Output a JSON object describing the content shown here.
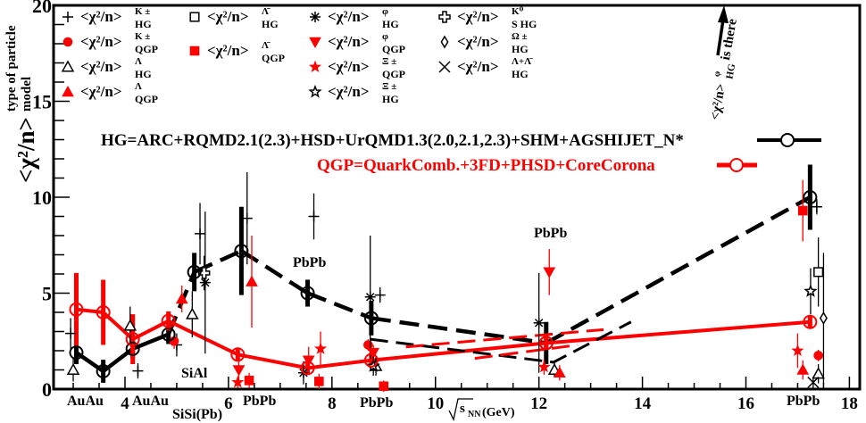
{
  "chart_data": {
    "type": "line",
    "title": "",
    "xlabel": {
      "base": "√",
      "main": "s",
      "sub": "NN",
      "unit": " (GeV)"
    },
    "ylabel": {
      "base": "<χ²/n>",
      "sup": "type of particle",
      "sub": "model"
    },
    "xlim": [
      2.62,
      18.2
    ],
    "ylim": [
      0,
      20
    ],
    "x_ticks": [
      4,
      6,
      8,
      10,
      12,
      14,
      16,
      18
    ],
    "y_ticks": [
      0,
      5,
      10,
      15,
      20
    ],
    "grid": false,
    "colors": {
      "hg": "#000000",
      "qgp": "#ff0000"
    },
    "series": [
      {
        "name": "HG=ARC+RQMD2.1(2.3)+HSD+UrQMD1.3(2.0,2.1,2.3)+SHM+AGSHIJET_N*",
        "color": "#000000",
        "x": [
          3.06,
          3.58,
          4.15,
          4.84,
          5.34,
          6.25,
          7.53,
          8.76,
          12.14,
          17.24
        ],
        "y": [
          1.9,
          0.93,
          2.1,
          2.85,
          6.1,
          7.2,
          5.0,
          3.7,
          2.4,
          10.0
        ],
        "yerr": [
          0.6,
          0.6,
          0.5,
          0.5,
          1.0,
          2.3,
          0.7,
          0.9,
          1.1,
          1.7
        ]
      },
      {
        "name": "QGP=QuarkComb.+3FD+PHSD+CoreCorona",
        "color": "#ff0000",
        "x": [
          3.06,
          3.58,
          4.15,
          4.84,
          6.18,
          7.53,
          8.76,
          12.14,
          17.24
        ],
        "y": [
          4.15,
          4.0,
          2.6,
          3.55,
          1.8,
          1.1,
          1.5,
          2.4,
          3.5
        ],
        "yerr": [
          1.9,
          1.7,
          1.3,
          0.5,
          0.3,
          0.3,
          0.4,
          0.3,
          0.3
        ]
      }
    ],
    "extra_dashed_lines": [
      {
        "color": "#000000",
        "x": [
          8.74,
          12.28,
          13.78
        ],
        "y": [
          2.6,
          1.4,
          3.5
        ]
      },
      {
        "color": "#ff0000",
        "x": [
          9.43,
          13.25
        ],
        "y": [
          2.2,
          3.1
        ]
      },
      {
        "color": "#ff0000",
        "x": [
          10.76,
          12.75
        ],
        "y": [
          1.6,
          2.3
        ]
      }
    ],
    "markers": [
      {
        "key": "K_HG",
        "symbol": "plus",
        "color": "#000000",
        "points": [
          [
            2.95,
            2.9,
            0.8
          ],
          [
            4.25,
            0.95,
            0.4
          ],
          [
            5.0,
            2.3,
            0.6
          ],
          [
            5.45,
            8.1,
            1.6
          ],
          [
            6.36,
            8.9,
            2.4
          ],
          [
            7.65,
            9.0,
            1.2
          ],
          [
            8.93,
            4.9,
            0.4
          ],
          [
            17.37,
            9.5,
            0.4
          ]
        ]
      },
      {
        "key": "K_QGP",
        "symbol": "circle-filled",
        "color": "#ff0000",
        "points": [
          [
            4.95,
            2.5,
            0.4
          ],
          [
            8.7,
            2.3,
            0.3
          ],
          [
            17.4,
            1.75,
            0.3
          ]
        ]
      },
      {
        "key": "L_HG",
        "symbol": "triangle-open",
        "color": "#000000",
        "points": [
          [
            3.0,
            1.0,
            0.6
          ],
          [
            4.1,
            3.3,
            1.0
          ],
          [
            5.3,
            3.9,
            1.2
          ],
          [
            8.85,
            1.2,
            0.5
          ],
          [
            12.3,
            1.0,
            0.4
          ],
          [
            17.4,
            0.8,
            0.5
          ]
        ]
      },
      {
        "key": "L_QGP",
        "symbol": "triangle-filled",
        "color": "#ff0000",
        "points": [
          [
            5.1,
            4.7,
            0.7
          ],
          [
            6.45,
            5.6,
            2.4
          ],
          [
            12.4,
            0.85,
            0.4
          ],
          [
            17.1,
            1.0,
            0.5
          ]
        ]
      },
      {
        "key": "AL_HG",
        "symbol": "square-open",
        "color": "#000000",
        "points": [
          [
            17.4,
            6.1,
            1.8
          ]
        ]
      },
      {
        "key": "AL_QGP",
        "symbol": "square-filled",
        "color": "#ff0000",
        "points": [
          [
            6.4,
            0.45,
            0.4
          ],
          [
            7.75,
            0.4,
            0.4
          ],
          [
            9.0,
            0.15,
            0.3
          ],
          [
            17.1,
            9.3,
            1.6
          ]
        ]
      },
      {
        "key": "phi_HG",
        "symbol": "asterisk",
        "color": "#000000",
        "points": [
          [
            5.55,
            5.55,
            3.7
          ],
          [
            7.45,
            0.85,
            0.6
          ],
          [
            8.74,
            4.8,
            3.2
          ],
          [
            12.0,
            3.45,
            2.6
          ]
        ]
      },
      {
        "key": "phi_QGP",
        "symbol": "triangle-down",
        "color": "#ff0000",
        "points": [
          [
            6.2,
            1.0,
            0.6
          ],
          [
            7.55,
            1.5,
            0.7
          ],
          [
            8.8,
            1.9,
            0.4
          ],
          [
            12.2,
            6.1,
            1.2
          ]
        ]
      },
      {
        "key": "Xi_QGP",
        "symbol": "star-filled",
        "color": "#ff0000",
        "points": [
          [
            6.18,
            0.35,
            0.3
          ],
          [
            7.78,
            2.1,
            0.9
          ],
          [
            12.1,
            1.15,
            0.4
          ],
          [
            17.0,
            2.0,
            0.9
          ]
        ]
      },
      {
        "key": "Xi_HG",
        "symbol": "star-open",
        "color": "#000000",
        "points": [
          [
            8.8,
            1.2,
            0.5
          ],
          [
            17.25,
            5.1,
            1.2
          ]
        ]
      },
      {
        "key": "K0s_HG",
        "symbol": "cross-open",
        "color": "#000000",
        "points": [
          [
            5.53,
            6.05,
            0.9
          ]
        ]
      },
      {
        "key": "Om_HG",
        "symbol": "diamond-open",
        "color": "#000000",
        "points": [
          [
            17.5,
            3.7,
            3.4
          ]
        ]
      },
      {
        "key": "LaL_HG",
        "symbol": "x",
        "color": "#000000",
        "points": [
          [
            17.3,
            0.35,
            0.3
          ]
        ]
      }
    ],
    "legend": {
      "placement": "top",
      "base": "<χ²/n>",
      "entries": [
        {
          "key": "K_HG",
          "symbol": "plus",
          "color": "#000000",
          "sup": "K ±",
          "sub": "HG"
        },
        {
          "key": "K_QGP",
          "symbol": "circle-filled",
          "color": "#ff0000",
          "sup": "K ±",
          "sub": "QGP"
        },
        {
          "key": "L_HG",
          "symbol": "triangle-open",
          "color": "#000000",
          "sup": "Λ",
          "sub": "HG"
        },
        {
          "key": "L_QGP",
          "symbol": "triangle-filled",
          "color": "#ff0000",
          "sup": "Λ",
          "sub": "QGP"
        },
        {
          "key": "AL_HG",
          "symbol": "square-open",
          "color": "#000000",
          "sup": "Λ̄",
          "sub": "HG"
        },
        {
          "key": "AL_QGP",
          "symbol": "square-filled",
          "color": "#ff0000",
          "sup": "Λ̄",
          "sub": "QGP"
        },
        {
          "key": "phi_HG",
          "symbol": "asterisk",
          "color": "#000000",
          "sup": "φ",
          "sub": "HG"
        },
        {
          "key": "phi_QGP",
          "symbol": "triangle-down",
          "color": "#ff0000",
          "sup": "φ",
          "sub": "QGP"
        },
        {
          "key": "Xi_QGP",
          "symbol": "star-filled",
          "color": "#ff0000",
          "sup": "Ξ ±",
          "sub": "QGP"
        },
        {
          "key": "Xi_HG",
          "symbol": "star-open",
          "color": "#000000",
          "sup": "Ξ ±",
          "sub": "HG"
        },
        {
          "key": "K0s_HG",
          "symbol": "cross-open",
          "color": "#000000",
          "sup": "K⁰",
          "sub": "S HG"
        },
        {
          "key": "Om_HG",
          "symbol": "diamond-open",
          "color": "#000000",
          "sup": "Ω ±",
          "sub": "HG"
        },
        {
          "key": "LaL_HG",
          "symbol": "x",
          "color": "#000000",
          "sup": "Λ+Λ̄",
          "sub": "HG"
        }
      ]
    },
    "annotations": {
      "arrow_note": {
        "base": "<χ²/n>",
        "sup": "φ",
        "sub": "HG",
        "tail": " is there"
      },
      "systems": [
        "AuAu",
        "AuAu",
        "SiSi(Pb)",
        "PbPb",
        "PbPb",
        "PbPb",
        "SiAl",
        "PbPb",
        "PbPb"
      ]
    }
  }
}
